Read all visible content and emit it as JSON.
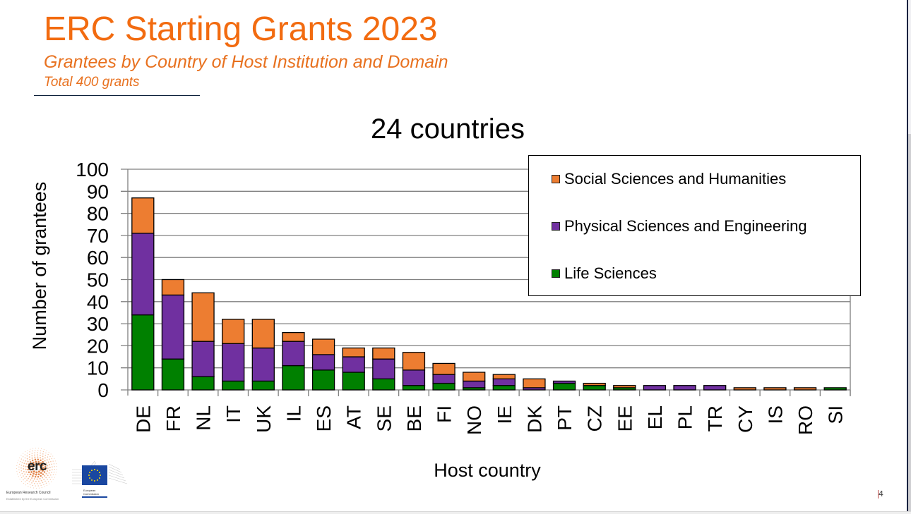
{
  "slide": {
    "title": "ERC Starting Grants 2023",
    "subtitle": "Grantees by Country of Host Institution and Domain",
    "total": "Total 400 grants",
    "page_number": "4"
  },
  "logos": {
    "erc_mark": "erc",
    "erc_name": "European Research Council",
    "erc_sub": "Established by the European Commission",
    "ec_name": "European Commission"
  },
  "colors": {
    "title": "#F26B10",
    "social": "#ED7D31",
    "physical": "#7030A0",
    "life": "#008000"
  },
  "chart_data": {
    "type": "bar",
    "stacked": true,
    "title": "24 countries",
    "xlabel": "Host country",
    "ylabel": "Number of grantees",
    "ylim": [
      0,
      100
    ],
    "yticks": [
      "0",
      "10",
      "20",
      "30",
      "40",
      "50",
      "60",
      "70",
      "80",
      "90",
      "100"
    ],
    "grid": true,
    "legend_position": "top-right",
    "categories": [
      "DE",
      "FR",
      "NL",
      "IT",
      "UK",
      "IL",
      "ES",
      "AT",
      "SE",
      "BE",
      "FI",
      "NO",
      "IE",
      "DK",
      "PT",
      "CZ",
      "EE",
      "EL",
      "PL",
      "TR",
      "CY",
      "IS",
      "RO",
      "SI"
    ],
    "series": [
      {
        "name": "Life Sciences",
        "color": "#008000",
        "values": [
          34,
          14,
          6,
          4,
          4,
          11,
          9,
          8,
          5,
          2,
          3,
          1,
          2,
          0,
          3,
          2,
          1,
          0,
          0,
          0,
          0,
          0,
          0,
          1
        ]
      },
      {
        "name": "Physical Sciences and Engineering",
        "color": "#7030A0",
        "values": [
          37,
          29,
          16,
          17,
          15,
          11,
          7,
          7,
          9,
          7,
          4,
          3,
          3,
          1,
          1,
          0,
          0,
          2,
          2,
          2,
          0,
          0,
          0,
          0
        ]
      },
      {
        "name": "Social Sciences and Humanities",
        "color": "#ED7D31",
        "values": [
          16,
          7,
          22,
          11,
          13,
          4,
          7,
          4,
          5,
          8,
          5,
          4,
          2,
          4,
          0,
          1,
          1,
          0,
          0,
          0,
          1,
          1,
          1,
          0
        ]
      }
    ],
    "legend_order": [
      "Social Sciences and Humanities",
      "Physical Sciences and Engineering",
      "Life Sciences"
    ]
  }
}
